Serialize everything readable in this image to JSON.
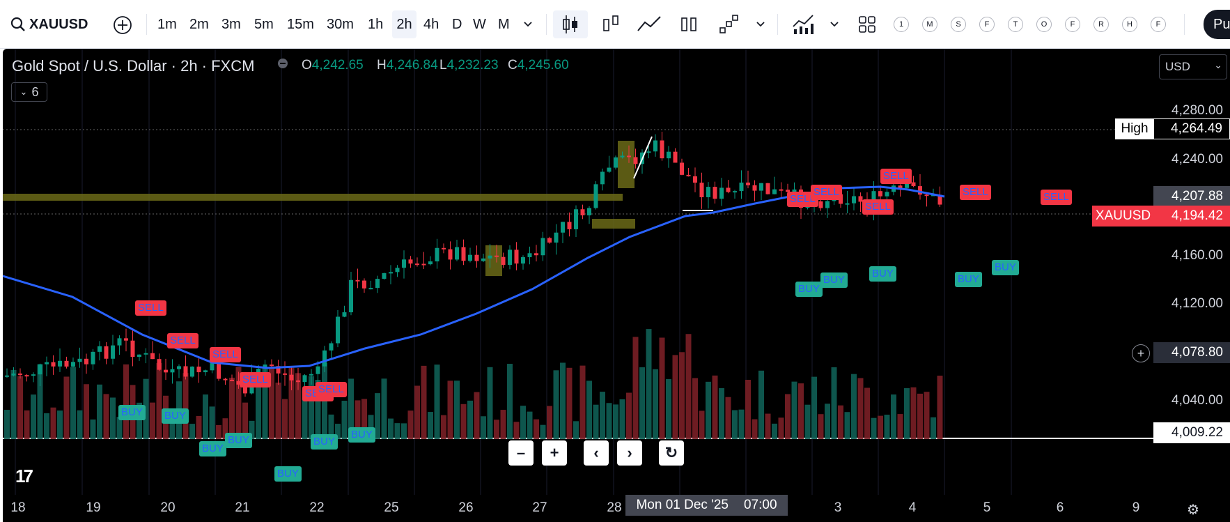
{
  "toolbar": {
    "symbol": "XAUUSD",
    "intervals": [
      "1m",
      "2m",
      "3m",
      "5m",
      "15m",
      "30m",
      "1h",
      "2h",
      "4h",
      "D",
      "W",
      "M"
    ],
    "active_interval": "2h",
    "quick_letters": [
      "1",
      "M",
      "S",
      "F",
      "T",
      "O",
      "F",
      "R",
      "H",
      "F"
    ],
    "publish_label": "Pu"
  },
  "legend": {
    "title": "Gold Spot / U.S. Dollar · 2h · FXCM",
    "open_key": "O",
    "open": "4,242.65",
    "high_key": "H",
    "high": "4,246.84",
    "low_key": "L",
    "low": "4,232.23",
    "close_key": "C",
    "close": "4,245.60",
    "collapse_count": "6",
    "currency": "USD"
  },
  "price_axis": {
    "labels": [
      "4,280.00",
      "4,240.00",
      "4,160.00",
      "4,120.00",
      "4,040.00"
    ],
    "high_word": "High",
    "high_value": "4,264.49",
    "crosshair_value": "4,207.88",
    "symbol_tag": "XAUUSD",
    "last_price": "4,194.42",
    "hover_value": "4,078.80",
    "bottom_value": "4,009.22"
  },
  "time_axis": {
    "labels": [
      "18",
      "19",
      "20",
      "21",
      "22",
      "25",
      "26",
      "27",
      "28",
      "3",
      "4",
      "5",
      "6",
      "9"
    ],
    "active_date": "Mon 01 Dec '25",
    "active_time": "07:00"
  },
  "signals": {
    "sell": "SELL",
    "buy": "BUY"
  },
  "colors": {
    "up": "#089981",
    "down": "#f23645",
    "ma": "#2962ff",
    "zone": "#6b6a17",
    "background": "#000000"
  },
  "icons": [
    "search-icon",
    "add-symbol-icon",
    "chevron-down-icon",
    "candles-icon",
    "bars-icon",
    "line-icon",
    "hollow-icon",
    "step-icon",
    "indicators-icon",
    "layout-icon",
    "settings-icon",
    "tradingview-logo"
  ]
}
